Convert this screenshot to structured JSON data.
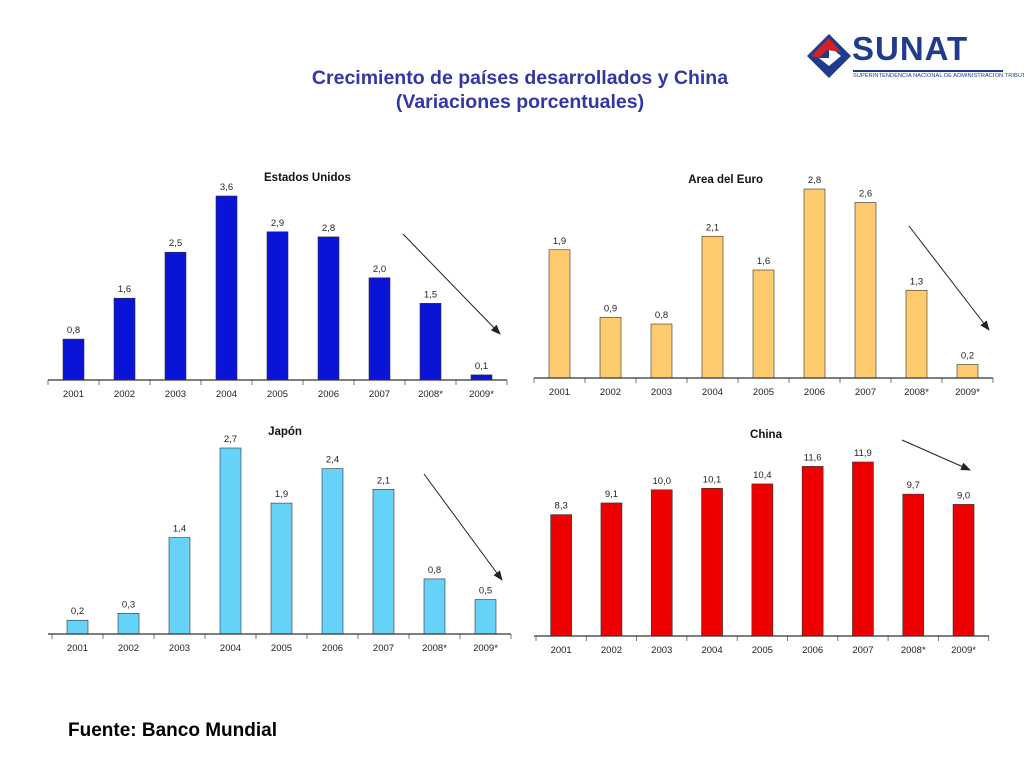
{
  "title": {
    "line1": "Crecimiento de países desarrollados y China",
    "line2": "(Variaciones porcentuales)"
  },
  "logo": {
    "text": "SUNAT",
    "subtitle": "SUPERINTENDENCIA NACIONAL DE ADMINISTRACION TRIBUTARIA",
    "colors": {
      "blue": "#1f3b8c",
      "red": "#d42027"
    }
  },
  "source": "Fuente: Banco Mundial",
  "chart_data": [
    {
      "type": "bar",
      "title": "Estados Unidos",
      "categories": [
        "2001",
        "2002",
        "2003",
        "2004",
        "2005",
        "2006",
        "2007",
        "2008*",
        "2009*"
      ],
      "values": [
        0.8,
        1.6,
        2.5,
        3.6,
        2.9,
        2.8,
        2.0,
        1.5,
        0.1
      ],
      "labels": [
        "0,8",
        "1,6",
        "2,5",
        "3,6",
        "2,9",
        "2,8",
        "2,0",
        "1,5",
        "0,1"
      ],
      "color": "#0a14d6",
      "trend_arrow": true
    },
    {
      "type": "bar",
      "title": "Area del Euro",
      "categories": [
        "2001",
        "2002",
        "2003",
        "2004",
        "2005",
        "2006",
        "2007",
        "2008*",
        "2009*"
      ],
      "values": [
        1.9,
        0.9,
        0.8,
        2.1,
        1.6,
        2.8,
        2.6,
        1.3,
        0.2
      ],
      "labels": [
        "1,9",
        "0,9",
        "0,8",
        "2,1",
        "1,6",
        "2,8",
        "2,6",
        "1,3",
        "0,2"
      ],
      "color": "#fdca6e",
      "trend_arrow": true
    },
    {
      "type": "bar",
      "title": "Japón",
      "categories": [
        "2001",
        "2002",
        "2003",
        "2004",
        "2005",
        "2006",
        "2007",
        "2008*",
        "2009*"
      ],
      "values": [
        0.2,
        0.3,
        1.4,
        2.7,
        1.9,
        2.4,
        2.1,
        0.8,
        0.5
      ],
      "labels": [
        "0,2",
        "0,3",
        "1,4",
        "2,7",
        "1,9",
        "2,4",
        "2,1",
        "0,8",
        "0,5"
      ],
      "color": "#66d2f8",
      "trend_arrow": true
    },
    {
      "type": "bar",
      "title": "China",
      "categories": [
        "2001",
        "2002",
        "2003",
        "2004",
        "2005",
        "2006",
        "2007",
        "2008*",
        "2009*"
      ],
      "values": [
        8.3,
        9.1,
        10.0,
        10.1,
        10.4,
        11.6,
        11.9,
        9.7,
        9.0
      ],
      "labels": [
        "8,3",
        "9,1",
        "10,0",
        "10,1",
        "10,4",
        "11,6",
        "11,9",
        "9,7",
        "9,0"
      ],
      "color": "#ee0000",
      "trend_arrow": true
    }
  ]
}
